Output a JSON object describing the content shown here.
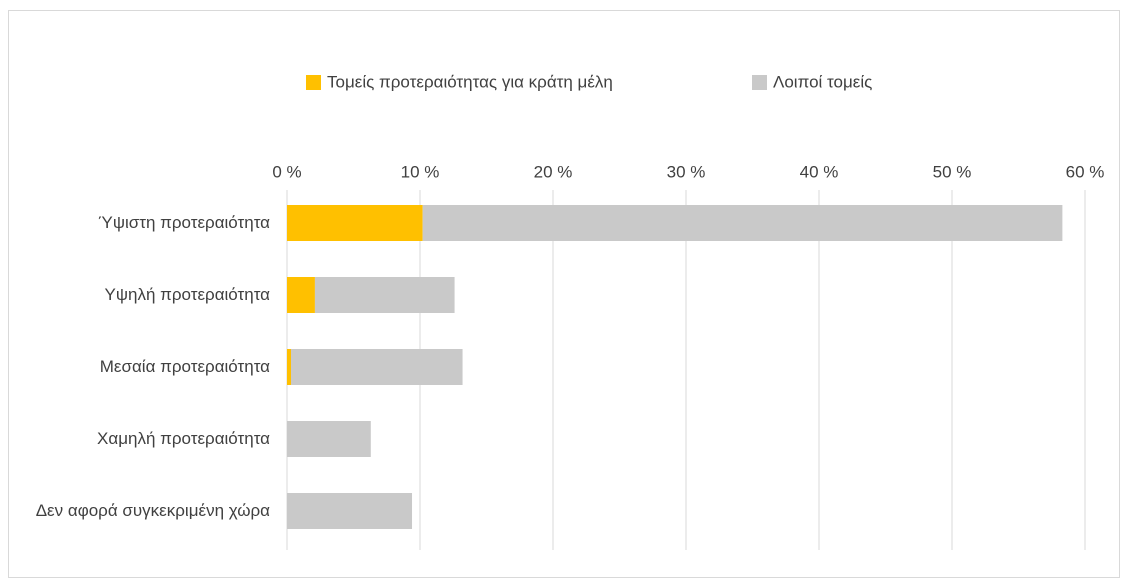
{
  "chart_data": {
    "type": "bar",
    "orientation": "horizontal",
    "stacked": true,
    "categories": [
      "Ύψιστη προτεραιότητα",
      "Υψηλή προτεραιότητα",
      "Μεσαία προτεραιότητα",
      "Χαμηλή προτεραιότητα",
      "Δεν αφορά συγκεκριμένη χώρα"
    ],
    "series": [
      {
        "name": "Τομείς προτεραιότητας για κράτη μέλη",
        "color": "#FFC000",
        "values": [
          10.2,
          2.1,
          0.3,
          0,
          0
        ]
      },
      {
        "name": "Λοιποί τομείς",
        "color": "#C9C9C9",
        "values": [
          48.1,
          10.5,
          12.9,
          6.3,
          9.4
        ]
      }
    ],
    "xlim": [
      0,
      60
    ],
    "xticks": [
      {
        "value": 0,
        "label": "0 %"
      },
      {
        "value": 10,
        "label": "10 %"
      },
      {
        "value": 20,
        "label": "20 %"
      },
      {
        "value": 30,
        "label": "30 %"
      },
      {
        "value": 40,
        "label": "40 %"
      },
      {
        "value": 50,
        "label": "50 %"
      },
      {
        "value": 60,
        "label": "60 %"
      }
    ],
    "grid": true,
    "legend": "top"
  }
}
